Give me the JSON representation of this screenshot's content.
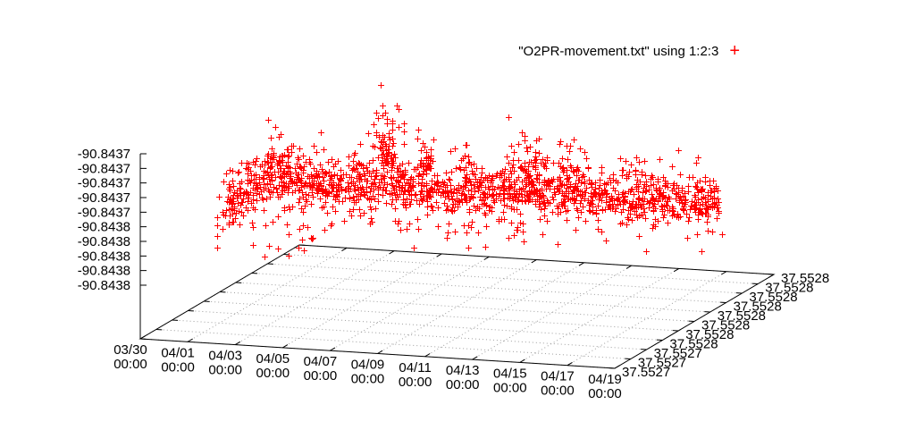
{
  "app": {
    "background": "#ffffff"
  },
  "legend": {
    "label": "\"O2PR-movement.txt\" using 1:2:3",
    "marker": "+",
    "marker_color": "#ff0000"
  },
  "chart_data": {
    "type": "scatter",
    "projection": "3d",
    "grid": true,
    "title": "",
    "series": [
      {
        "name": "\"O2PR-movement.txt\" using 1:2:3",
        "marker": "plus",
        "color": "#ff0000",
        "points_approx": 1800
      }
    ],
    "x_axis": {
      "title": "",
      "tick_labels": [
        {
          "line1": "03/30",
          "line2": "00:00"
        },
        {
          "line1": "04/01",
          "line2": "00:00"
        },
        {
          "line1": "04/03",
          "line2": "00:00"
        },
        {
          "line1": "04/05",
          "line2": "00:00"
        },
        {
          "line1": "04/07",
          "line2": "00:00"
        },
        {
          "line1": "04/09",
          "line2": "00:00"
        },
        {
          "line1": "04/11",
          "line2": "00:00"
        },
        {
          "line1": "04/13",
          "line2": "00:00"
        },
        {
          "line1": "04/15",
          "line2": "00:00"
        },
        {
          "line1": "04/17",
          "line2": "00:00"
        },
        {
          "line1": "04/19",
          "line2": "00:00"
        }
      ]
    },
    "y_axis": {
      "title": "",
      "tick_labels_front_to_back": [
        "37.5527",
        "37.5527",
        "37.5527",
        "37.5528",
        "37.5528",
        "37.5528",
        "37.5528",
        "37.5528",
        "37.5528",
        "37.5528",
        "37.5528"
      ],
      "range": [
        37.5527,
        37.5528
      ]
    },
    "z_axis": {
      "title": "",
      "tick_labels_top_to_bottom": [
        "-90.8437",
        "-90.8437",
        "-90.8437",
        "-90.8437",
        "-90.8437",
        "-90.8438",
        "-90.8438",
        "-90.8438",
        "-90.8438",
        "-90.8438"
      ],
      "range": [
        -90.8438,
        -90.8437
      ]
    },
    "colors": {
      "points": "#ff0000",
      "grid": "#9e9e9e",
      "axis": "#000000",
      "text": "#000000"
    },
    "pixel_distribution": {
      "seed": 1337,
      "band": {
        "n": 1560,
        "x0": 248,
        "x1": 804,
        "sd": 13,
        "outlier_frac": 0.13,
        "outlier_sd": 27,
        "spine": [
          [
            248,
            224
          ],
          [
            268,
            213
          ],
          [
            295,
            205
          ],
          [
            335,
            201
          ],
          [
            375,
            204
          ],
          [
            415,
            206
          ],
          [
            455,
            208
          ],
          [
            495,
            212
          ],
          [
            535,
            215
          ],
          [
            575,
            213
          ],
          [
            615,
            212
          ],
          [
            655,
            217
          ],
          [
            695,
            220
          ],
          [
            735,
            222
          ],
          [
            775,
            224
          ],
          [
            804,
            226
          ]
        ]
      },
      "blobs": [
        {
          "n": 72,
          "x": 433,
          "xsd": 8,
          "ybase": 183,
          "ysd": 30,
          "dir": "up"
        },
        {
          "n": 26,
          "x": 316,
          "xsd": 10,
          "ybase": 183,
          "ysd": 13,
          "dir": "up"
        },
        {
          "n": 22,
          "x": 479,
          "xsd": 9,
          "ybase": 186,
          "ysd": 15,
          "dir": "up"
        },
        {
          "n": 12,
          "x": 520,
          "xsd": 7,
          "ybase": 188,
          "ysd": 13,
          "dir": "up"
        },
        {
          "n": 40,
          "x": 594,
          "xsd": 13,
          "ybase": 190,
          "ysd": 17,
          "dir": "up"
        },
        {
          "n": 22,
          "x": 638,
          "xsd": 9,
          "ybase": 192,
          "ysd": 13,
          "dir": "up"
        },
        {
          "n": 15,
          "x": 708,
          "xsd": 9,
          "ybase": 197,
          "ysd": 11,
          "dir": "up"
        },
        {
          "n": 48,
          "x": 490,
          "xsd": 150,
          "ybase": 246,
          "ysd": 16,
          "dir": "down"
        },
        {
          "n": 14,
          "x": 257,
          "xsd": 8,
          "ybase": 234,
          "ysd": 9,
          "dir": "both"
        },
        {
          "n": 20,
          "x": 783,
          "xsd": 13,
          "ybase": 224,
          "ysd": 11,
          "dir": "both"
        },
        {
          "n": 3,
          "x": 346,
          "xsd": 3,
          "ybase": 265,
          "ysd": 3,
          "dir": "both"
        }
      ]
    }
  }
}
